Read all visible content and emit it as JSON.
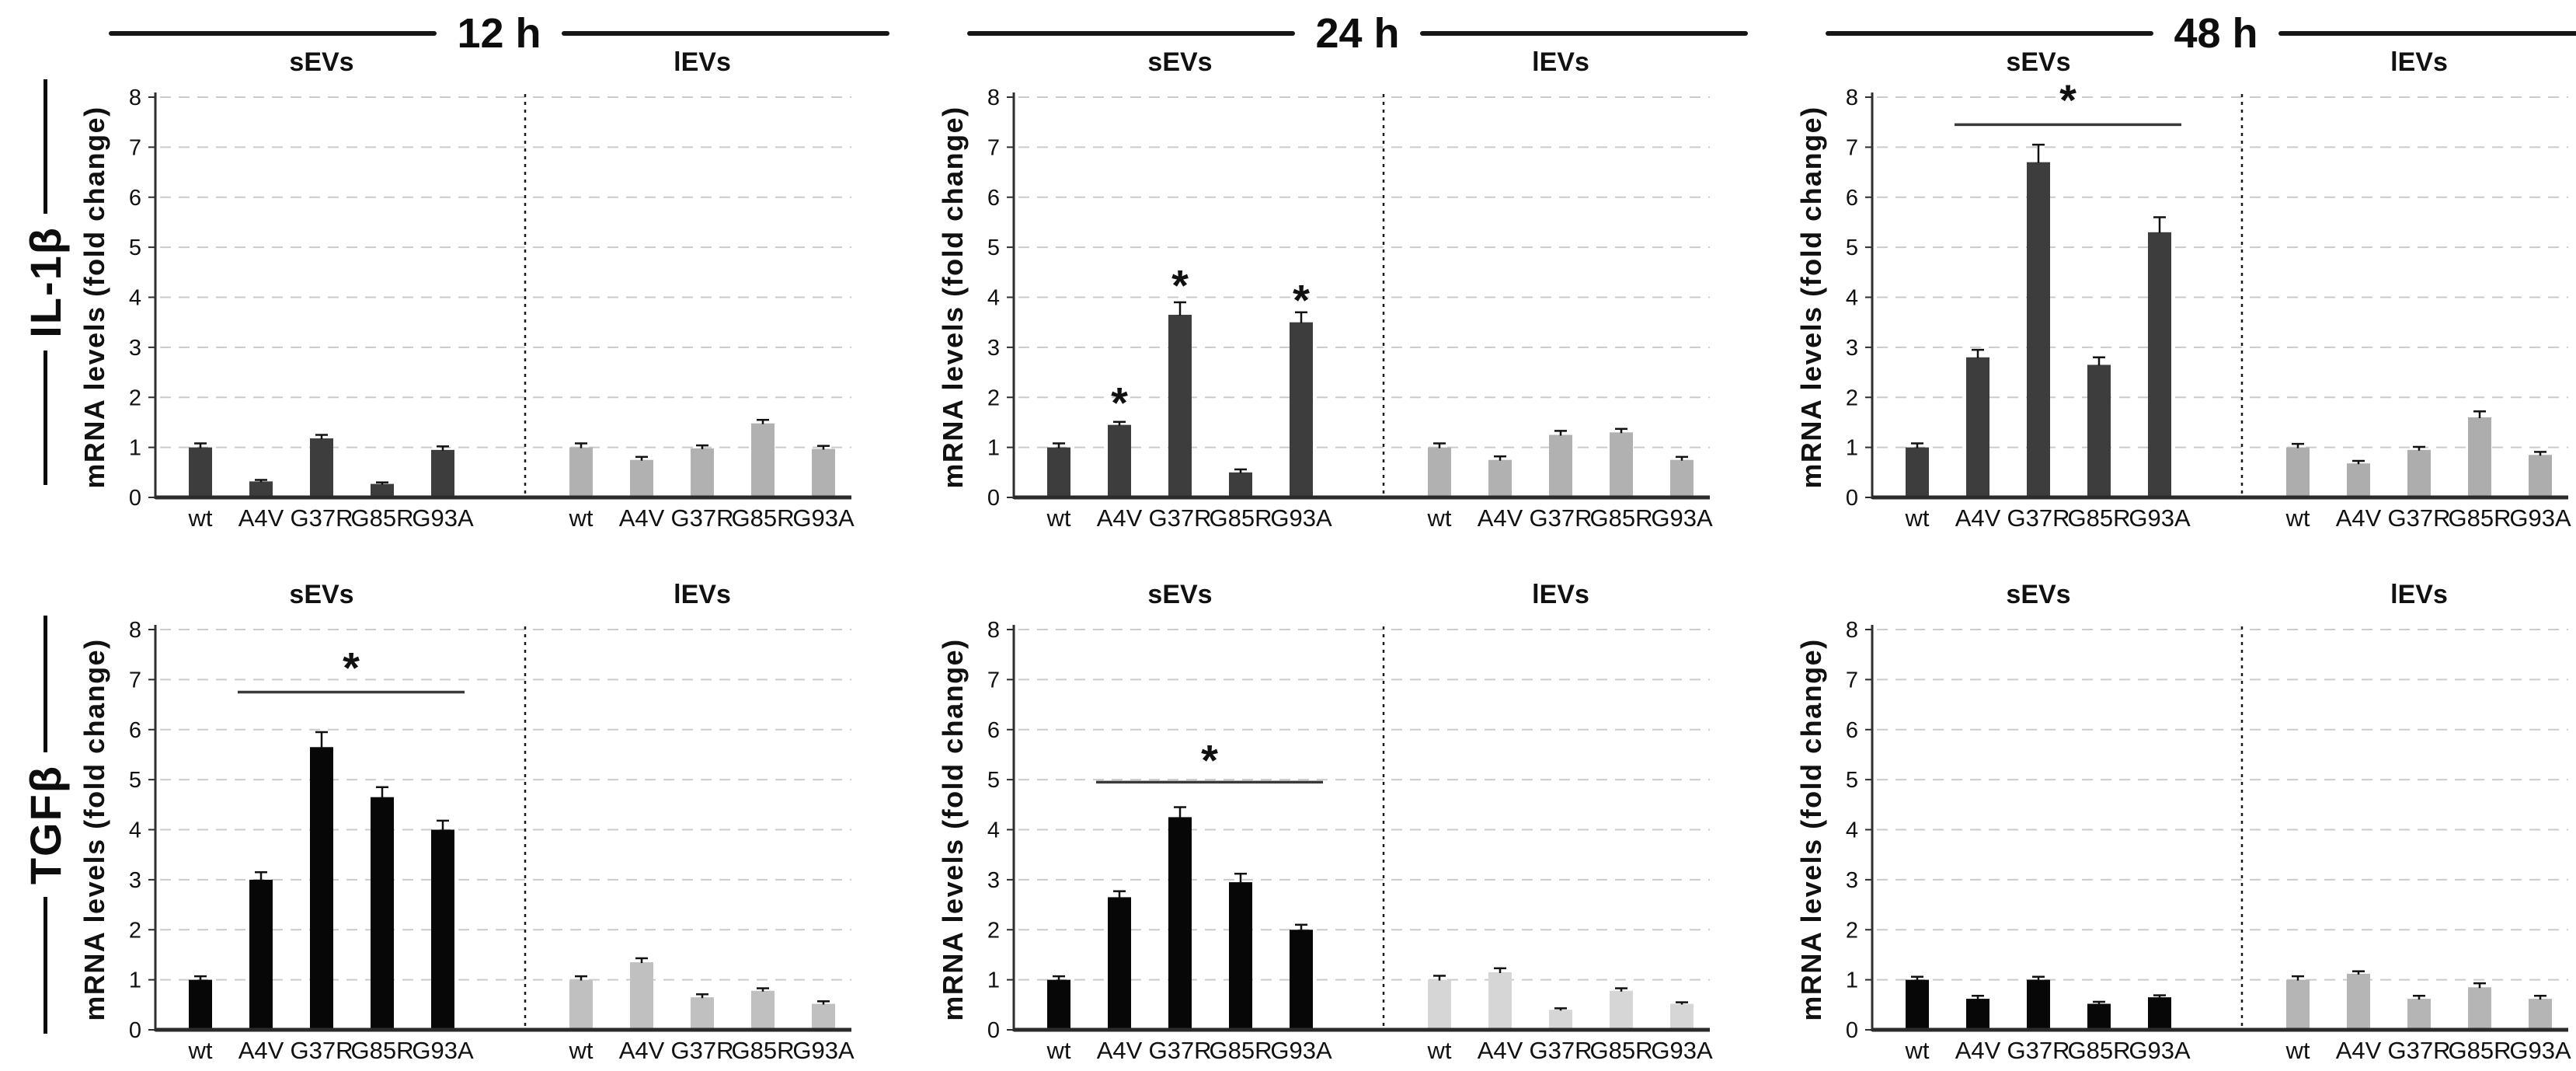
{
  "figure": {
    "column_headers": [
      "12 h",
      "24 h",
      "48 h"
    ],
    "row_labels": [
      "IL-1β",
      "TGFβ"
    ],
    "group_titles": [
      "sEVs",
      "lEVs"
    ],
    "ylabel": "mRNA levels (fold change)",
    "categories": [
      "wt",
      "A4V",
      "G37R",
      "G85R",
      "G93A"
    ],
    "sig_symbol": "*",
    "background_color": "#ffffff",
    "gridline_color": "#cbcbcb",
    "axis_color": "#2e2e2e",
    "text_color": "#111111"
  },
  "chart_data": [
    {
      "type": "bar",
      "row_label": "IL-1β",
      "timepoint": "12 h",
      "title_left": "sEVs",
      "title_right": "lEVs",
      "ylabel": "mRNA levels (fold change)",
      "ylim": [
        0,
        8
      ],
      "ytick_step": 1,
      "grid": true,
      "categories": [
        "wt",
        "A4V",
        "G37R",
        "G85R",
        "G93A"
      ],
      "series": [
        {
          "name": "sEVs",
          "color": "#3d3d3d",
          "values": [
            1.0,
            0.32,
            1.18,
            0.27,
            0.95
          ],
          "errors": [
            0.08,
            0.03,
            0.07,
            0.03,
            0.07
          ]
        },
        {
          "name": "lEVs",
          "color": "#b1b1b1",
          "values": [
            1.0,
            0.75,
            0.98,
            1.48,
            0.97
          ],
          "errors": [
            0.08,
            0.06,
            0.06,
            0.07,
            0.06
          ]
        }
      ],
      "significance": {
        "stars": [],
        "bracket": null
      }
    },
    {
      "type": "bar",
      "row_label": "IL-1β",
      "timepoint": "24 h",
      "title_left": "sEVs",
      "title_right": "lEVs",
      "ylabel": "mRNA levels (fold change)",
      "ylim": [
        0,
        8
      ],
      "ytick_step": 1,
      "grid": true,
      "categories": [
        "wt",
        "A4V",
        "G37R",
        "G85R",
        "G93A"
      ],
      "series": [
        {
          "name": "sEVs",
          "color": "#3d3d3d",
          "values": [
            1.0,
            1.45,
            3.65,
            0.5,
            3.5
          ],
          "errors": [
            0.08,
            0.06,
            0.25,
            0.06,
            0.2
          ]
        },
        {
          "name": "lEVs",
          "color": "#b1b1b1",
          "values": [
            1.0,
            0.75,
            1.25,
            1.3,
            0.75
          ],
          "errors": [
            0.08,
            0.07,
            0.08,
            0.07,
            0.06
          ]
        }
      ],
      "significance": {
        "stars": [
          {
            "series": "sEVs",
            "category": "A4V",
            "y": 1.9
          },
          {
            "series": "sEVs",
            "category": "G37R",
            "y": 4.25
          },
          {
            "series": "sEVs",
            "category": "G93A",
            "y": 3.95
          }
        ],
        "bracket": null
      }
    },
    {
      "type": "bar",
      "row_label": "IL-1β",
      "timepoint": "48 h",
      "title_left": "sEVs",
      "title_right": "lEVs",
      "ylabel": "mRNA levels (fold change)",
      "ylim": [
        0,
        8
      ],
      "ytick_step": 1,
      "grid": true,
      "categories": [
        "wt",
        "A4V",
        "G37R",
        "G85R",
        "G93A"
      ],
      "series": [
        {
          "name": "sEVs",
          "color": "#3d3d3d",
          "values": [
            1.0,
            2.8,
            6.7,
            2.65,
            5.3
          ],
          "errors": [
            0.08,
            0.15,
            0.35,
            0.15,
            0.3
          ]
        },
        {
          "name": "lEVs",
          "color": "#adadad",
          "values": [
            1.0,
            0.68,
            0.95,
            1.6,
            0.85
          ],
          "errors": [
            0.07,
            0.05,
            0.06,
            0.12,
            0.06
          ]
        }
      ],
      "significance": {
        "stars": [],
        "bracket": {
          "series": "sEVs",
          "from": "A4V",
          "to": "G93A",
          "line_y": 7.45,
          "star_y": 7.95
        }
      }
    },
    {
      "type": "bar",
      "row_label": "TGFβ",
      "timepoint": "12 h",
      "title_left": "sEVs",
      "title_right": "lEVs",
      "ylabel": "mRNA levels (fold change)",
      "ylim": [
        0,
        8
      ],
      "ytick_step": 1,
      "grid": true,
      "categories": [
        "wt",
        "A4V",
        "G37R",
        "G85R",
        "G93A"
      ],
      "series": [
        {
          "name": "sEVs",
          "color": "#070707",
          "values": [
            1.0,
            3.0,
            5.65,
            4.65,
            4.0
          ],
          "errors": [
            0.07,
            0.15,
            0.3,
            0.2,
            0.18
          ]
        },
        {
          "name": "lEVs",
          "color": "#c0c0c0",
          "values": [
            1.0,
            1.35,
            0.65,
            0.78,
            0.52
          ],
          "errors": [
            0.07,
            0.08,
            0.06,
            0.05,
            0.05
          ]
        }
      ],
      "significance": {
        "stars": [],
        "bracket": {
          "series": "sEVs",
          "from": "A4V",
          "to": "G93A",
          "line_y": 6.75,
          "star_y": 7.25
        }
      }
    },
    {
      "type": "bar",
      "row_label": "TGFβ",
      "timepoint": "24 h",
      "title_left": "sEVs",
      "title_right": "lEVs",
      "ylabel": "mRNA levels (fold change)",
      "ylim": [
        0,
        8
      ],
      "ytick_step": 1,
      "grid": true,
      "categories": [
        "wt",
        "A4V",
        "G37R",
        "G85R",
        "G93A"
      ],
      "series": [
        {
          "name": "sEVs",
          "color": "#070707",
          "values": [
            1.0,
            2.65,
            4.25,
            2.95,
            2.0
          ],
          "errors": [
            0.07,
            0.12,
            0.2,
            0.17,
            0.1
          ]
        },
        {
          "name": "lEVs",
          "color": "#d6d6d6",
          "values": [
            1.0,
            1.15,
            0.4,
            0.78,
            0.52
          ],
          "errors": [
            0.08,
            0.08,
            0.03,
            0.05,
            0.03
          ]
        }
      ],
      "significance": {
        "stars": [],
        "bracket": {
          "series": "sEVs",
          "from": "A4V",
          "to": "G93A",
          "line_y": 4.95,
          "star_y": 5.4
        }
      }
    },
    {
      "type": "bar",
      "row_label": "TGFβ",
      "timepoint": "48 h",
      "title_left": "sEVs",
      "title_right": "lEVs",
      "ylabel": "mRNA levels (fold change)",
      "ylim": [
        0,
        8
      ],
      "ytick_step": 1,
      "grid": true,
      "categories": [
        "wt",
        "A4V",
        "G37R",
        "G85R",
        "G93A"
      ],
      "series": [
        {
          "name": "sEVs",
          "color": "#070707",
          "values": [
            1.0,
            0.62,
            1.0,
            0.52,
            0.65
          ],
          "errors": [
            0.06,
            0.06,
            0.06,
            0.04,
            0.04
          ]
        },
        {
          "name": "lEVs",
          "color": "#b5b5b5",
          "values": [
            1.0,
            1.12,
            0.62,
            0.85,
            0.62
          ],
          "errors": [
            0.07,
            0.05,
            0.06,
            0.08,
            0.06
          ]
        }
      ],
      "significance": {
        "stars": [],
        "bracket": null
      }
    }
  ]
}
